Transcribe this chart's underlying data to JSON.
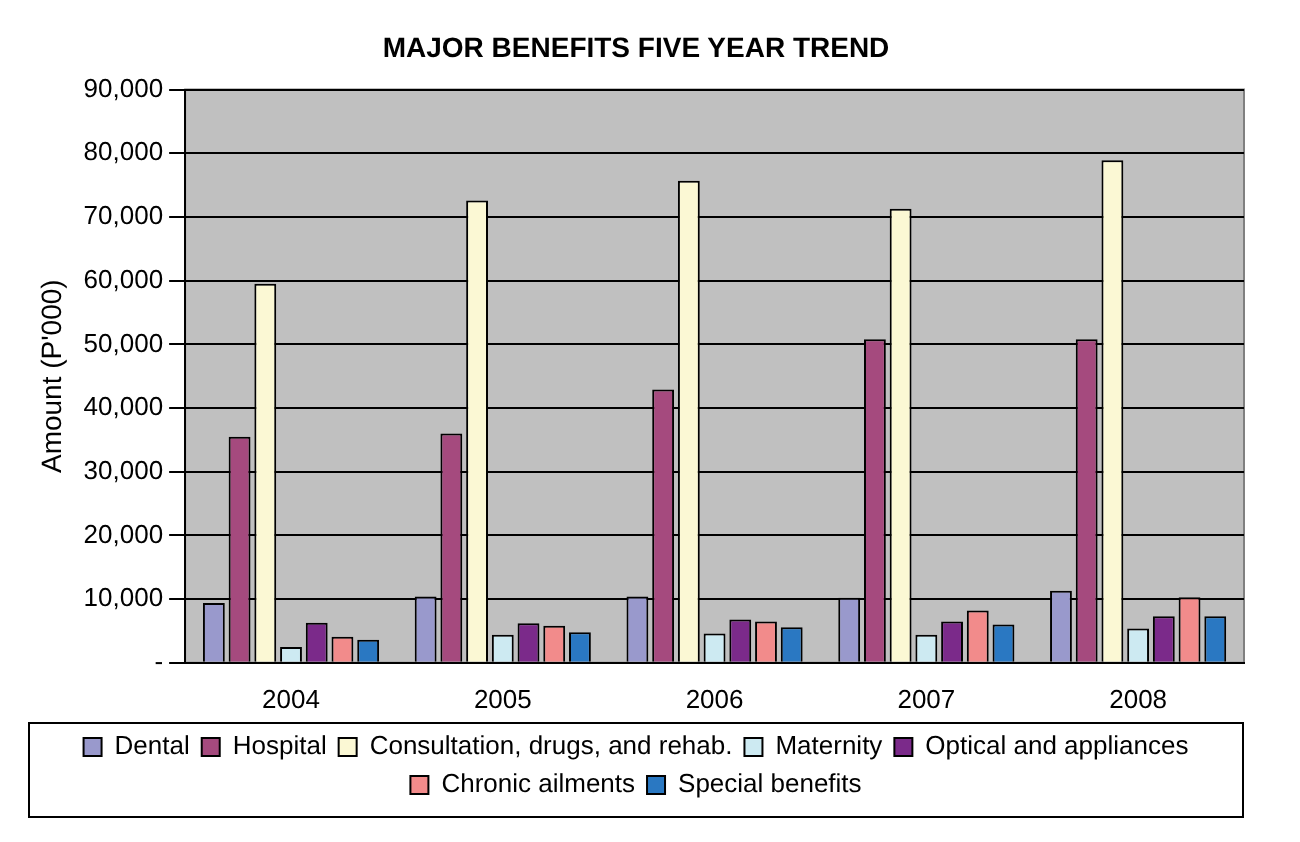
{
  "chart_data": {
    "type": "bar",
    "title": "MAJOR BENEFITS FIVE YEAR TREND",
    "ylabel": "Amount (P'000)",
    "categories": [
      "2004",
      "2005",
      "2006",
      "2007",
      "2008"
    ],
    "series": [
      {
        "name": "Dental",
        "color": "#9999cc",
        "values": [
          9400,
          10400,
          10400,
          10200,
          11300
        ]
      },
      {
        "name": "Hospital",
        "color": "#a54a7e",
        "values": [
          35500,
          36000,
          42900,
          50800,
          50800
        ]
      },
      {
        "name": "Consultation, drugs, and rehab.",
        "color": "#fbf8d4",
        "values": [
          59500,
          72600,
          75700,
          71300,
          78900
        ]
      },
      {
        "name": "Maternity",
        "color": "#cdeaf2",
        "values": [
          2500,
          4400,
          4600,
          4400,
          5400
        ]
      },
      {
        "name": "Optical and appliances",
        "color": "#7b2a8a",
        "values": [
          6300,
          6200,
          6800,
          6500,
          7300
        ]
      },
      {
        "name": "Chronic ailments",
        "color": "#f28b8b",
        "values": [
          4100,
          5800,
          6500,
          8200,
          10300
        ]
      },
      {
        "name": "Special benefits",
        "color": "#2a78c2",
        "values": [
          3600,
          4800,
          5600,
          6000,
          7300
        ]
      }
    ],
    "ylim": [
      0,
      90000
    ],
    "yticks": [
      {
        "value": 0,
        "label": "-"
      },
      {
        "value": 10000,
        "label": "10,000"
      },
      {
        "value": 20000,
        "label": "20,000"
      },
      {
        "value": 30000,
        "label": "30,000"
      },
      {
        "value": 40000,
        "label": "40,000"
      },
      {
        "value": 50000,
        "label": "50,000"
      },
      {
        "value": 60000,
        "label": "60,000"
      },
      {
        "value": 70000,
        "label": "70,000"
      },
      {
        "value": 80000,
        "label": "80,000"
      },
      {
        "value": 90000,
        "label": "90,000"
      }
    ],
    "grid": "y",
    "legend": "bottom"
  }
}
